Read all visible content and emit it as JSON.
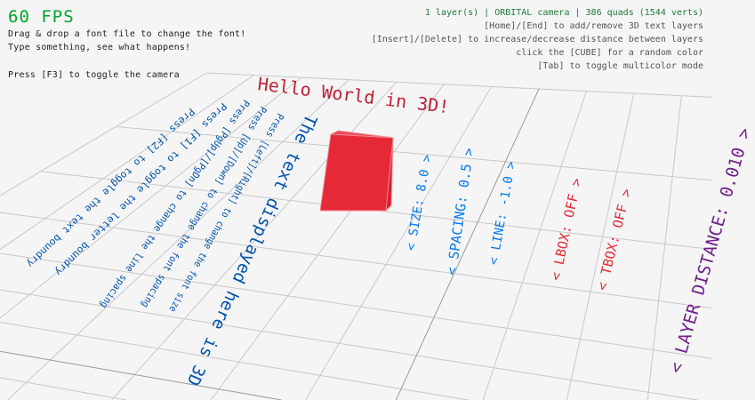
{
  "hud_left": {
    "fps": "60 FPS",
    "line1": "Drag & drop a font file to change the font!",
    "line2": "Type something, see what happens!",
    "line3": "Press [F3] to toggle the camera"
  },
  "hud_right": {
    "status": "1 layer(s) | ORBITAL camera |  386 quads (1544 verts)",
    "line1": "[Home]/[End] to add/remove 3D text layers",
    "line2": "[Insert]/[Delete] to increase/decrease distance between layers",
    "line3": "click the [CUBE] for a random color",
    "line4": "[Tab] to toggle multicolor mode"
  },
  "scene": {
    "hello": "Hello World in 3D!",
    "main_text": "The text displayed here is 3D",
    "instructions": [
      "Press [F2] to toggle the text boundry",
      "Press [F1] to toggle the letter boundry",
      "Press [PgUp]/[PgDn] to change the line spacing",
      "Press [Up]/[Down] to change the font spacing",
      "Press [Left]/[Right] to change the font size"
    ],
    "settings": {
      "size": "< SIZE: 8.0 >",
      "spacing": "< SPACING: 0.5 >",
      "line": "< LINE: -1.0 >",
      "lbox": "< LBOX: OFF >",
      "tbox": "< TBOX: OFF >",
      "layer_distance": "< LAYER DISTANCE: 0.010 >"
    }
  },
  "colors": {
    "cube": "#e62937",
    "hello": "#be2137",
    "blue_text": "#0052ac",
    "settings_blue": "#0079f1",
    "settings_red": "#e62937",
    "settings_purple": "#70208a",
    "fps": "#00a32a",
    "status": "#1e7a3c"
  }
}
